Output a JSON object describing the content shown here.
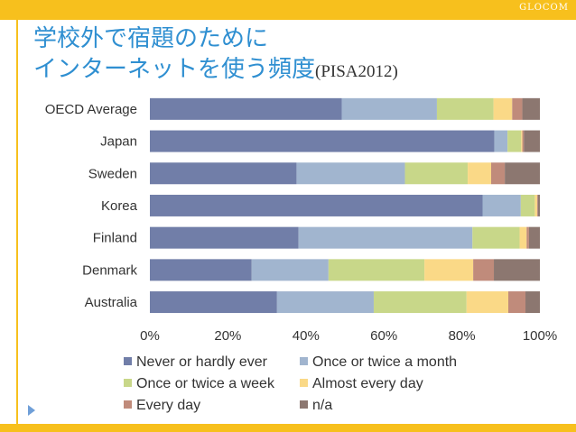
{
  "header": {
    "brand": "GLOCOM"
  },
  "slide": {
    "title_line1": "学校外で宿題のために",
    "title_line2": "インターネットを使う頻度",
    "title_suffix": "(PISA2012)"
  },
  "colors": {
    "accent_bar": "#f7c01d",
    "title": "#2f8fd1"
  },
  "icons": {
    "bullet": "triangle-arrow-icon"
  },
  "chart_data": {
    "type": "bar",
    "orientation": "horizontal",
    "stacked": true,
    "percent": true,
    "categories": [
      "OECD Average",
      "Japan",
      "Sweden",
      "Korea",
      "Finland",
      "Denmark",
      "Australia"
    ],
    "xlim": [
      0,
      100
    ],
    "xticks": [
      "0%",
      "20%",
      "40%",
      "60%",
      "80%",
      "100%"
    ],
    "grid": false,
    "legend_position": "bottom",
    "series": [
      {
        "name": "Never or hardly ever",
        "color": "#717ea8",
        "values": [
          49.2,
          88.3,
          37.6,
          85.3,
          38.1,
          26.1,
          32.6
        ]
      },
      {
        "name": "Once or twice a month",
        "color": "#a1b5cf",
        "values": [
          24.4,
          3.4,
          27.8,
          9.8,
          44.6,
          19.7,
          24.8
        ]
      },
      {
        "name": "Once or twice a week",
        "color": "#c8d789",
        "values": [
          14.5,
          3.5,
          16.1,
          3.6,
          12.1,
          24.6,
          23.8
        ]
      },
      {
        "name": "Almost every day",
        "color": "#fad987",
        "values": [
          4.8,
          0.3,
          6.0,
          0.6,
          1.8,
          12.5,
          10.7
        ]
      },
      {
        "name": "Every day",
        "color": "#c08b7b",
        "values": [
          2.6,
          0.4,
          3.5,
          0.2,
          0.6,
          5.3,
          4.4
        ]
      },
      {
        "name": "n/a",
        "color": "#8c7770",
        "values": [
          4.5,
          4.1,
          9.0,
          0.5,
          2.8,
          11.8,
          3.7
        ]
      }
    ]
  }
}
